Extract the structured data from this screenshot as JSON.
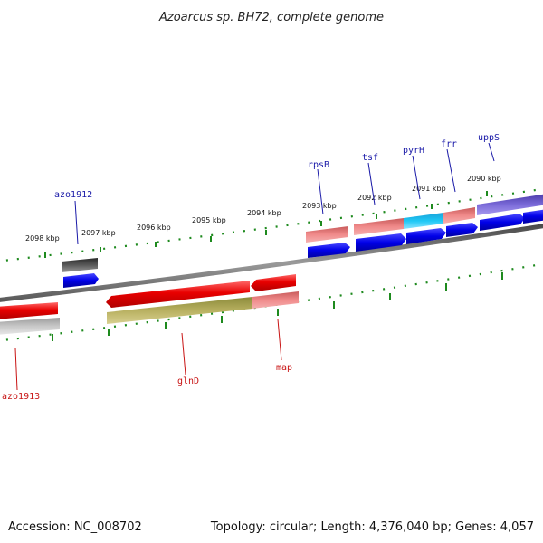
{
  "title": "Azoarcus sp. BH72, complete genome",
  "footer": {
    "accession": "Accession: NC_008702",
    "summary": "Topology: circular; Length: 4,376,040 bp; Genes: 4,057"
  },
  "colors": {
    "backbone": "#7a7a7a",
    "ticks": "#1e8a1e",
    "forward_label": "#1a1aa8",
    "reverse_label": "#c81414"
  },
  "scale_labels": [
    {
      "text": "2098 kbp"
    },
    {
      "text": "2097 kbp"
    },
    {
      "text": "2096 kbp"
    },
    {
      "text": "2095 kbp"
    },
    {
      "text": "2094 kbp"
    },
    {
      "text": "2093 kbp"
    },
    {
      "text": "2092 kbp"
    },
    {
      "text": "2091 kbp"
    },
    {
      "text": "2090 kbp"
    }
  ],
  "gene_labels": [
    {
      "text": "azo1912",
      "strand": "forward"
    },
    {
      "text": "rpsB",
      "strand": "forward"
    },
    {
      "text": "tsf",
      "strand": "forward"
    },
    {
      "text": "pyrH",
      "strand": "forward"
    },
    {
      "text": "frr",
      "strand": "forward"
    },
    {
      "text": "uppS",
      "strand": "forward"
    },
    {
      "text": "azo1913",
      "strand": "reverse"
    },
    {
      "text": "glnD",
      "strand": "reverse"
    },
    {
      "text": "map",
      "strand": "reverse"
    }
  ]
}
